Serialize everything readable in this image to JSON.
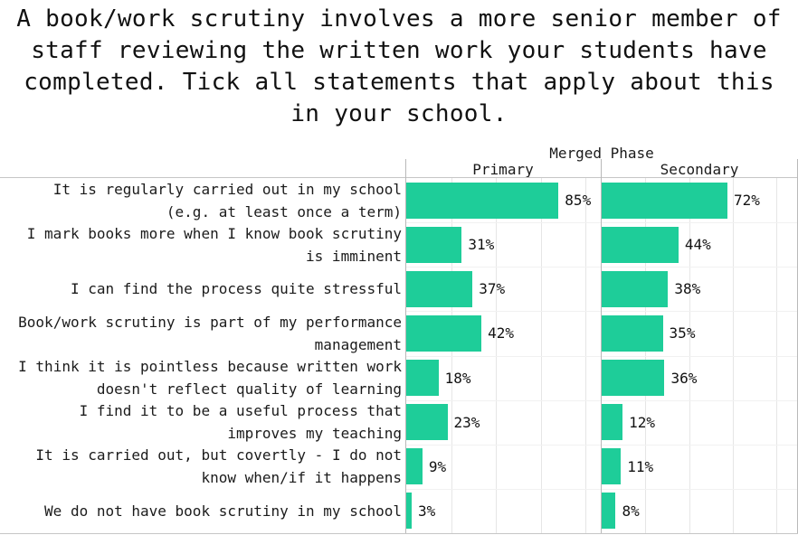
{
  "title": "A book/work scrutiny involves a more senior member of\nstaff reviewing the written work your students have\ncompleted. Tick all statements that apply about this\nin your school.",
  "chart_data": {
    "type": "bar",
    "orientation": "horizontal",
    "facet_header": "Merged Phase",
    "categories": [
      "It is regularly carried out in my school\n(e.g. at least once a term)",
      "I mark books more when I know book scrutiny\nis imminent",
      "I can find the process quite stressful",
      "Book/work scrutiny is part of my performance\nmanagement",
      "I think it is pointless because written work\ndoesn't reflect quality of learning",
      "I find it to be a useful process that\nimproves my teaching",
      "It is carried out, but covertly - I do not\nknow when/if it happens",
      "We do not have book scrutiny in my school"
    ],
    "series": [
      {
        "name": "Primary",
        "values": [
          85,
          31,
          37,
          42,
          18,
          23,
          9,
          3
        ]
      },
      {
        "name": "Secondary",
        "values": [
          72,
          44,
          38,
          35,
          36,
          12,
          11,
          8
        ]
      }
    ],
    "value_suffix": "%",
    "xlim": [
      0,
      100
    ],
    "gridline_step": 25,
    "grid": true,
    "legend": "none",
    "bar_color": "#1ECD99"
  },
  "colors": {
    "bar": "#1ECD99",
    "text": "#1a1a1a",
    "panel_border": "#b9b9b9",
    "frame_line": "#c6c6c6",
    "gridline": "#e6e6e6",
    "row_separator": "#f1f1f1",
    "background": "#ffffff"
  }
}
